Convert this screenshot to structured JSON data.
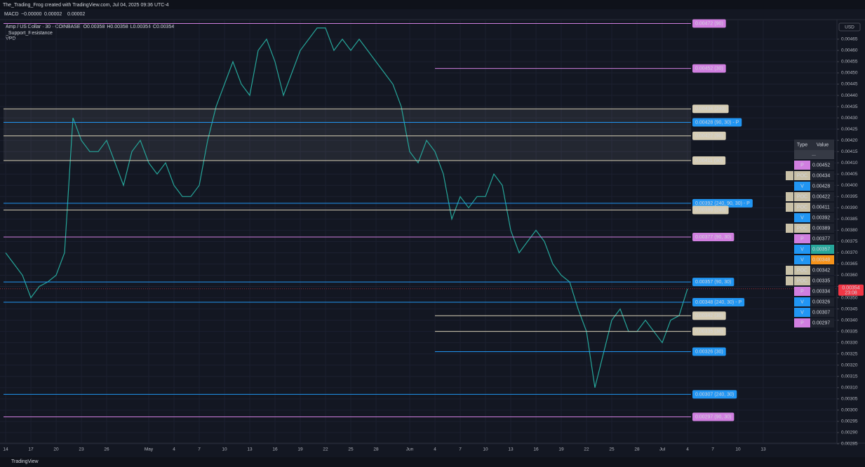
{
  "header": {
    "credit": "The_Trading_Frog created with TradingView.com, Jul 04, 2025 09:36 UTC-4",
    "macd": {
      "name": "MACD",
      "values": [
        {
          "text": "−0.00000",
          "color": "#f23645"
        },
        {
          "text": "0.00002",
          "color": "#2962ff"
        },
        {
          "text": "0.00002",
          "color": "#ff6d00"
        }
      ]
    }
  },
  "legend": {
    "symbol": "Amp / US Dollar · 30 · COINBASE",
    "ohlc": [
      "O0.00358",
      "H0.00358",
      "L0.00354",
      "C0.00354"
    ],
    "indicators": [
      "_Support_Resistance",
      "VPD"
    ]
  },
  "currency": "USD",
  "price_label": {
    "value": "0.00354",
    "time": "23:08",
    "price": 0.00354
  },
  "footer": "TradingView",
  "chart_data": {
    "type": "line",
    "color": "#26a69a",
    "x": [
      0,
      1,
      2,
      3,
      4,
      5,
      6,
      7,
      8,
      9,
      10,
      11,
      12,
      13,
      14,
      15,
      16,
      17,
      18,
      19,
      20,
      21,
      22,
      23,
      24,
      25,
      26,
      27,
      28,
      29,
      30,
      31,
      32,
      33,
      34,
      35,
      36,
      37,
      38,
      39,
      40,
      41,
      42,
      43,
      44,
      45,
      46,
      47,
      48,
      49,
      50,
      51,
      52,
      53,
      54,
      55,
      56,
      57,
      58,
      59,
      60,
      61,
      62,
      63,
      64,
      65,
      66,
      67,
      68,
      69,
      70,
      71,
      72,
      73,
      74,
      75,
      76,
      77,
      78,
      79,
      80,
      81
    ],
    "values": [
      0.0037,
      0.00365,
      0.0036,
      0.0035,
      0.00355,
      0.00357,
      0.0036,
      0.0037,
      0.0043,
      0.0042,
      0.00415,
      0.00415,
      0.0042,
      0.0041,
      0.004,
      0.00415,
      0.0042,
      0.0041,
      0.00405,
      0.0041,
      0.004,
      0.00395,
      0.00395,
      0.004,
      0.0042,
      0.00435,
      0.00445,
      0.00455,
      0.00445,
      0.0044,
      0.0046,
      0.00465,
      0.00455,
      0.0044,
      0.0045,
      0.0046,
      0.00465,
      0.0047,
      0.0047,
      0.0046,
      0.00465,
      0.0046,
      0.00465,
      0.0046,
      0.00455,
      0.0045,
      0.00445,
      0.00435,
      0.00415,
      0.0041,
      0.0042,
      0.00415,
      0.00405,
      0.00385,
      0.00395,
      0.0039,
      0.00395,
      0.00395,
      0.00405,
      0.004,
      0.0038,
      0.0037,
      0.00375,
      0.0038,
      0.00375,
      0.00365,
      0.0036,
      0.00357,
      0.00345,
      0.00335,
      0.0031,
      0.00325,
      0.0034,
      0.00345,
      0.00335,
      0.00335,
      0.0034,
      0.00335,
      0.0033,
      0.0034,
      0.00342,
      0.00354
    ],
    "xlim": [
      -0.67,
      98.75
    ],
    "ylim": [
      0.002853,
      0.004737
    ],
    "xticks": [
      {
        "value": 0,
        "label": "14"
      },
      {
        "value": 3,
        "label": "17"
      },
      {
        "value": 6,
        "label": "20"
      },
      {
        "value": 9,
        "label": "23"
      },
      {
        "value": 12,
        "label": "26"
      },
      {
        "value": 17,
        "label": "May"
      },
      {
        "value": 20,
        "label": "4"
      },
      {
        "value": 23,
        "label": "7"
      },
      {
        "value": 26,
        "label": "10"
      },
      {
        "value": 29,
        "label": "13"
      },
      {
        "value": 32,
        "label": "16"
      },
      {
        "value": 35,
        "label": "19"
      },
      {
        "value": 38,
        "label": "22"
      },
      {
        "value": 41,
        "label": "25"
      },
      {
        "value": 44,
        "label": "28"
      },
      {
        "value": 48,
        "label": "Jun"
      },
      {
        "value": 51,
        "label": "4"
      },
      {
        "value": 54,
        "label": "7"
      },
      {
        "value": 57,
        "label": "10"
      },
      {
        "value": 60,
        "label": "13"
      },
      {
        "value": 63,
        "label": "16"
      },
      {
        "value": 66,
        "label": "19"
      },
      {
        "value": 69,
        "label": "22"
      },
      {
        "value": 72,
        "label": "25"
      },
      {
        "value": 75,
        "label": "28"
      },
      {
        "value": 78,
        "label": "Jul"
      },
      {
        "value": 81,
        "label": "4"
      },
      {
        "value": 84,
        "label": "7"
      },
      {
        "value": 87,
        "label": "10"
      },
      {
        "value": 90,
        "label": "13"
      }
    ],
    "yticks": [
      {
        "value": 0.00285,
        "label": "0.00285"
      },
      {
        "value": 0.0029,
        "label": "0.00290"
      },
      {
        "value": 0.00295,
        "label": "0.00295"
      },
      {
        "value": 0.003,
        "label": "0.00300"
      },
      {
        "value": 0.00305,
        "label": "0.00305"
      },
      {
        "value": 0.0031,
        "label": "0.00310"
      },
      {
        "value": 0.00315,
        "label": "0.00315"
      },
      {
        "value": 0.0032,
        "label": "0.00320"
      },
      {
        "value": 0.00325,
        "label": "0.00325"
      },
      {
        "value": 0.0033,
        "label": "0.00330"
      },
      {
        "value": 0.00335,
        "label": "0.00335"
      },
      {
        "value": 0.0034,
        "label": "0.00340"
      },
      {
        "value": 0.00345,
        "label": "0.00345"
      },
      {
        "value": 0.0035,
        "label": "0.00350"
      },
      {
        "value": 0.00355,
        "label": "0.00355"
      },
      {
        "value": 0.0036,
        "label": "0.00360"
      },
      {
        "value": 0.00365,
        "label": "0.00365"
      },
      {
        "value": 0.0037,
        "label": "0.00370"
      },
      {
        "value": 0.00375,
        "label": "0.00375"
      },
      {
        "value": 0.0038,
        "label": "0.00380"
      },
      {
        "value": 0.00385,
        "label": "0.00385"
      },
      {
        "value": 0.0039,
        "label": "0.00390"
      },
      {
        "value": 0.00395,
        "label": "0.00395"
      },
      {
        "value": 0.004,
        "label": "0.00400"
      },
      {
        "value": 0.00405,
        "label": "0.00405"
      },
      {
        "value": 0.0041,
        "label": "0.00410"
      },
      {
        "value": 0.00415,
        "label": "0.00415"
      },
      {
        "value": 0.0042,
        "label": "0.00420"
      },
      {
        "value": 0.00425,
        "label": "0.00425"
      },
      {
        "value": 0.0043,
        "label": "0.00430"
      },
      {
        "value": 0.00435,
        "label": "0.00435"
      },
      {
        "value": 0.0044,
        "label": "0.00440"
      },
      {
        "value": 0.00445,
        "label": "0.00445"
      },
      {
        "value": 0.0045,
        "label": "0.00450"
      },
      {
        "value": 0.00455,
        "label": "0.00455"
      },
      {
        "value": 0.0046,
        "label": "0.00460"
      },
      {
        "value": 0.00465,
        "label": "0.00465"
      }
    ],
    "grid": true
  },
  "levels": [
    {
      "price": 0.00472,
      "label": "0.00472 (90)",
      "color": "#d17fe0"
    },
    {
      "price": 0.00452,
      "label": "0.00452 (30)",
      "color": "#d17fe0",
      "start": 51
    },
    {
      "price": 0.00434,
      "label": "0.00434 (240)",
      "color": "#d6cdb4"
    },
    {
      "price": 0.00428,
      "label": "0.00428 (90, 30) - P",
      "color": "#2196f3"
    },
    {
      "price": 0.00422,
      "label": "0.00422 (90)",
      "color": "#d6cdb4"
    },
    {
      "price": 0.00411,
      "label": "0.00411 (90)",
      "color": "#d6cdb4"
    },
    {
      "price": 0.00392,
      "label": "0.00392 (240, 90, 30) - P",
      "color": "#2196f3"
    },
    {
      "price": 0.00389,
      "label": "0.00389 (240)",
      "color": "#d6cdb4"
    },
    {
      "price": 0.00377,
      "label": "0.00377 (90, 30)",
      "color": "#d17fe0"
    },
    {
      "price": 0.00357,
      "label": "0.00357 (90, 30)",
      "color": "#2196f3"
    },
    {
      "price": 0.00348,
      "label": "0.00348 (240, 30) - P",
      "color": "#2196f3"
    },
    {
      "price": 0.00342,
      "label": "0.00342 (30)",
      "color": "#d6cdb4",
      "start": 51
    },
    {
      "price": 0.00335,
      "label": "0.00335 (30)",
      "color": "#d6cdb4",
      "start": 51
    },
    {
      "price": 0.00326,
      "label": "0.00326 (30)",
      "color": "#2196f3",
      "start": 51
    },
    {
      "price": 0.00307,
      "label": "0.00307 (240, 30)",
      "color": "#2196f3"
    },
    {
      "price": 0.00297,
      "label": "0.00297 (90, 30)",
      "color": "#d17fe0"
    }
  ],
  "table": {
    "header": [
      "Type",
      "Value"
    ],
    "subheader": "...",
    "rows": [
      [
        "P",
        "0.00452"
      ],
      [
        "POC",
        "0.00434"
      ],
      [
        "V",
        "0.00428"
      ],
      [
        "POC",
        "0.00422"
      ],
      [
        "POC",
        "0.00411"
      ],
      [
        "V",
        "0.00392"
      ],
      [
        "POC",
        "0.00389"
      ],
      [
        "P",
        "0.00377"
      ],
      [
        "V",
        "0.00357"
      ],
      [
        "V",
        "0.00348"
      ],
      [
        "POC",
        "0.00342"
      ],
      [
        "POC",
        "0.00335"
      ],
      [
        "P",
        "0.00334"
      ],
      [
        "V",
        "0.00326"
      ],
      [
        "V",
        "0.00307"
      ],
      [
        "P",
        "0.00297"
      ]
    ],
    "type_colors": {
      "P": "#d17fe0",
      "POC": "#c9c1a8",
      "V": "#2196f3"
    },
    "highlights": {
      "8": "#26a69a",
      "9": "#f7931a"
    }
  }
}
